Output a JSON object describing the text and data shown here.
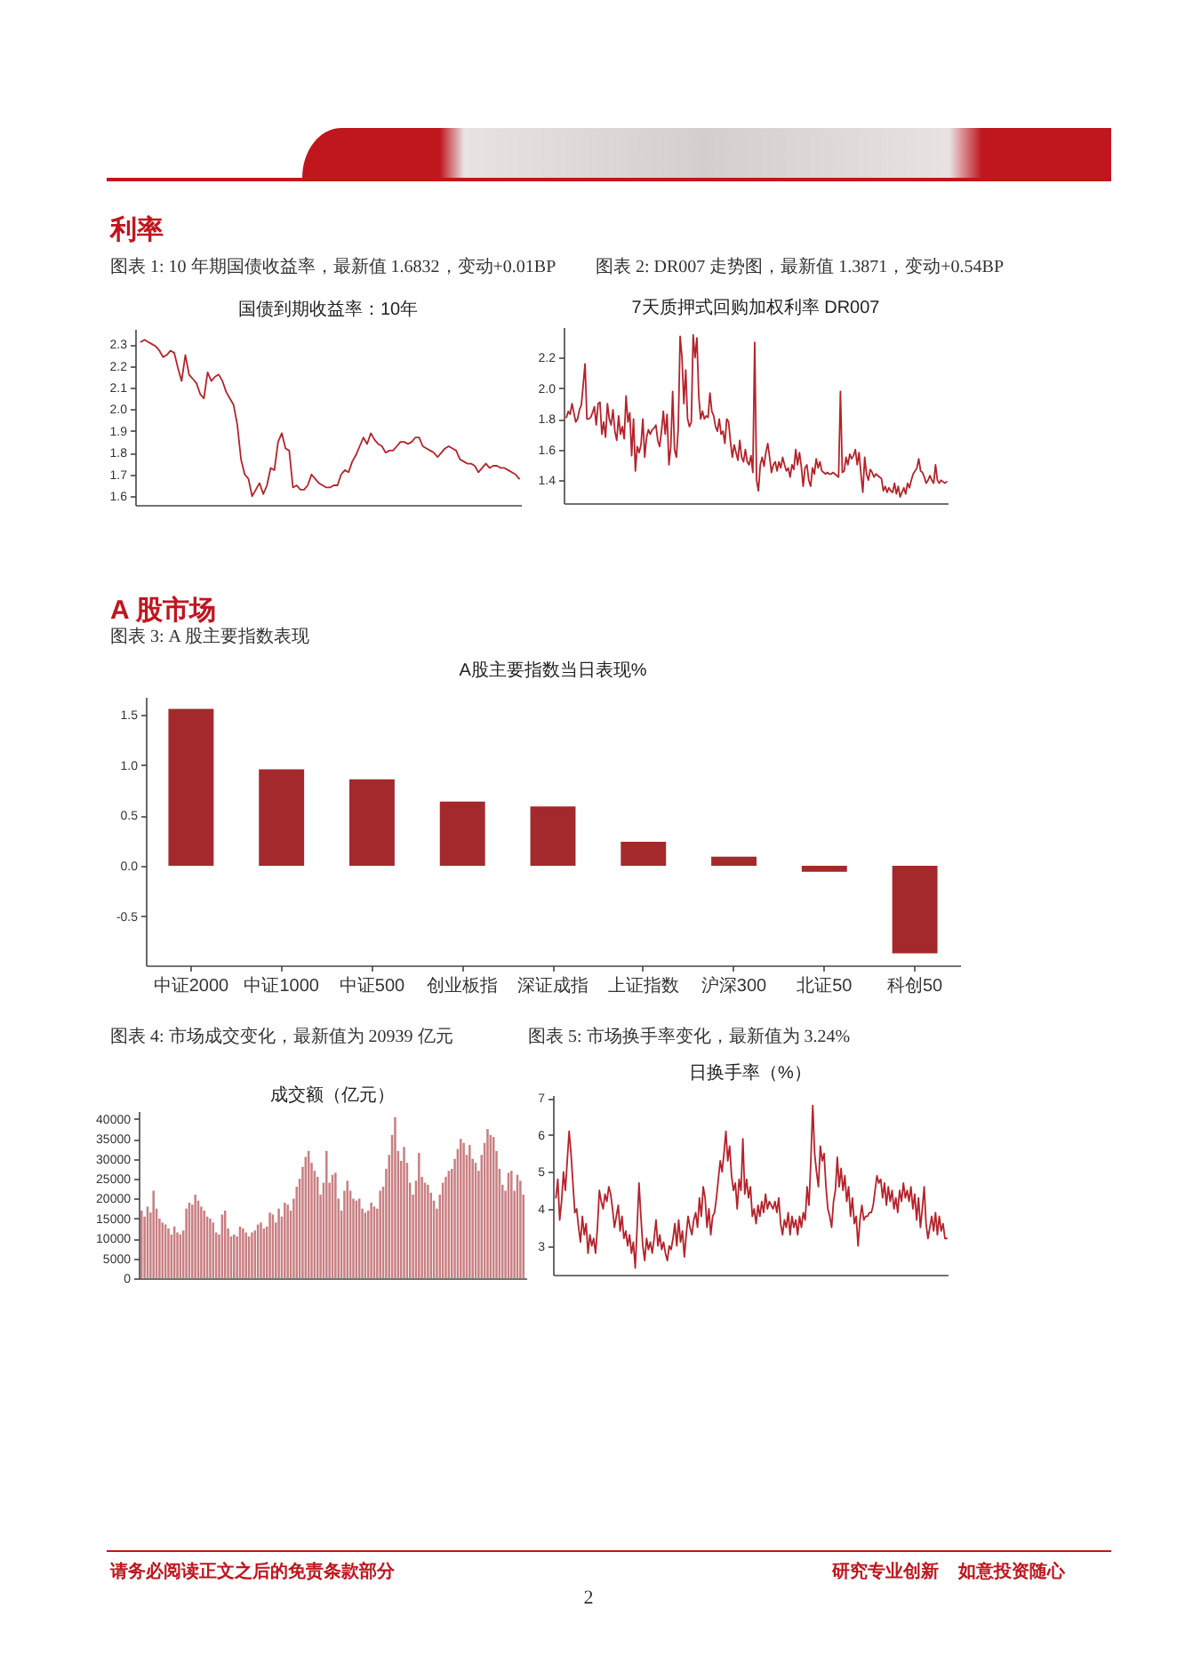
{
  "chart_data": [
    {
      "type": "line",
      "title": "国债到期收益率：10年",
      "subtitle": "图表 1: 10 年期国债收益率，最新值 1.6832，变动+0.01BP",
      "annotations": [
        "利率"
      ],
      "color": "#b5232a",
      "categories": [
        null,
        null,
        null,
        null,
        null,
        null,
        null,
        null,
        null,
        null,
        null,
        null,
        null,
        null,
        null,
        null,
        null,
        null,
        null,
        null,
        null,
        null,
        null,
        null,
        null,
        null,
        null,
        null,
        null,
        null,
        null,
        null,
        null,
        null,
        null,
        null,
        null,
        null,
        null,
        null,
        null,
        null,
        null,
        null,
        null,
        null,
        null,
        null,
        null,
        null,
        null,
        null,
        null,
        null,
        null,
        null,
        null,
        null,
        null,
        null,
        null,
        null,
        null,
        null,
        null,
        null,
        null,
        null,
        null,
        null,
        null,
        null,
        null,
        null,
        null,
        null,
        null,
        null,
        null,
        null,
        null,
        null,
        null,
        null,
        null,
        null,
        null,
        null,
        null,
        null,
        null,
        null,
        null,
        null,
        null,
        null,
        null,
        null,
        null,
        null,
        null,
        null,
        null
      ],
      "values": [
        2.31,
        2.32,
        2.31,
        2.3,
        2.29,
        2.27,
        2.24,
        2.25,
        2.27,
        2.26,
        2.19,
        2.13,
        2.25,
        2.16,
        2.14,
        2.12,
        2.07,
        2.05,
        2.17,
        2.13,
        2.15,
        2.16,
        2.13,
        2.08,
        2.05,
        2.02,
        1.93,
        1.77,
        1.7,
        1.68,
        1.6,
        1.63,
        1.66,
        1.61,
        1.65,
        1.73,
        1.72,
        1.85,
        1.89,
        1.82,
        1.81,
        1.64,
        1.65,
        1.63,
        1.63,
        1.65,
        1.7,
        1.68,
        1.66,
        1.65,
        1.64,
        1.64,
        1.65,
        1.65,
        1.7,
        1.72,
        1.71,
        1.76,
        1.79,
        1.83,
        1.87,
        1.84,
        1.89,
        1.86,
        1.84,
        1.83,
        1.8,
        1.81,
        1.81,
        1.83,
        1.85,
        1.85,
        1.84,
        1.85,
        1.87,
        1.87,
        1.83,
        1.82,
        1.81,
        1.8,
        1.78,
        1.8,
        1.82,
        1.83,
        1.82,
        1.81,
        1.77,
        1.76,
        1.75,
        1.75,
        1.74,
        1.71,
        1.73,
        1.75,
        1.73,
        1.74,
        1.74,
        1.73,
        1.73,
        1.72,
        1.71,
        1.7,
        1.68
      ],
      "ylim": [
        1.56,
        2.37
      ],
      "yticks": [
        2.3,
        2.2,
        2.1,
        {
          "value": 2,
          "label": "2.0"
        },
        1.9,
        1.8,
        1.7,
        1.6
      ]
    },
    {
      "type": "line",
      "title": "7天质押式回购加权利率 DR007",
      "subtitle": "图表 2: DR007 走势图，最新值 1.3871，变动+0.54BP",
      "color": "#b5232a",
      "categories": [
        null,
        null,
        null,
        null,
        null,
        null,
        null,
        null,
        null,
        null,
        null,
        null,
        null,
        null,
        null,
        null,
        null,
        null,
        null,
        null,
        null,
        null,
        null,
        null,
        null,
        null,
        null,
        null,
        null,
        null,
        null,
        null,
        null,
        null,
        null,
        null,
        null,
        null,
        null,
        null,
        null,
        null,
        null,
        null,
        null,
        null,
        null,
        null,
        null,
        null,
        null,
        null,
        null,
        null,
        null,
        null,
        null,
        null,
        null,
        null,
        null,
        null,
        null,
        null,
        null,
        null,
        null,
        null,
        null,
        null,
        null,
        null,
        null,
        null,
        null,
        null,
        null,
        null,
        null,
        null,
        null,
        null,
        null,
        null,
        null,
        null,
        null,
        null,
        null,
        null,
        null,
        null,
        null,
        null,
        null,
        null,
        null,
        null,
        null,
        null,
        null,
        null,
        null,
        null,
        null,
        null,
        null,
        null,
        null,
        null,
        null,
        null,
        null,
        null,
        null,
        null,
        null,
        null,
        null,
        null,
        null,
        null,
        null,
        null,
        null,
        null,
        null,
        null,
        null,
        null,
        null,
        null,
        null,
        null,
        null,
        null,
        null,
        null,
        null,
        null,
        null,
        null,
        null,
        null,
        null,
        null,
        null,
        null,
        null,
        null,
        null,
        null,
        null,
        null,
        null,
        null,
        null,
        null,
        null,
        null,
        null,
        null,
        null,
        null,
        null,
        null,
        null,
        null,
        null,
        null,
        null,
        null,
        null,
        null,
        null,
        null,
        null,
        null,
        null,
        null,
        null,
        null,
        null,
        null,
        null,
        null,
        null,
        null,
        null,
        null,
        null,
        null,
        null,
        null,
        null,
        null,
        null,
        null,
        null,
        null,
        null,
        null,
        null,
        null,
        null
      ],
      "values": [
        1.81,
        1.85,
        1.83,
        1.9,
        1.84,
        1.78,
        1.8,
        1.86,
        1.89,
        2.02,
        2.16,
        1.8,
        1.8,
        1.81,
        1.84,
        1.88,
        1.76,
        1.9,
        1.91,
        1.7,
        1.78,
        1.68,
        1.9,
        1.8,
        1.76,
        1.86,
        1.72,
        1.66,
        1.82,
        1.7,
        1.75,
        1.67,
        1.95,
        1.78,
        1.84,
        1.56,
        1.8,
        1.46,
        1.62,
        1.58,
        1.63,
        1.8,
        1.55,
        1.68,
        1.73,
        1.7,
        1.73,
        1.74,
        1.76,
        1.66,
        1.62,
        1.72,
        1.85,
        1.7,
        1.83,
        1.5,
        1.62,
        1.98,
        1.6,
        1.55,
        1.74,
        2.34,
        2.2,
        1.9,
        2.12,
        1.8,
        1.75,
        1.78,
        2.35,
        2.2,
        2.33,
        1.95,
        1.8,
        1.85,
        1.8,
        1.82,
        1.81,
        1.97,
        1.85,
        1.82,
        1.75,
        1.72,
        1.8,
        1.7,
        1.72,
        1.64,
        1.8,
        1.78,
        1.65,
        1.55,
        1.63,
        1.58,
        1.53,
        1.66,
        1.55,
        1.52,
        1.6,
        1.52,
        1.5,
        1.56,
        1.45,
        2.3,
        1.4,
        1.33,
        1.5,
        1.55,
        1.49,
        1.58,
        1.64,
        1.55,
        1.45,
        1.5,
        1.52,
        1.46,
        1.52,
        1.48,
        1.55,
        1.5,
        1.46,
        1.48,
        1.42,
        1.5,
        1.47,
        1.6,
        1.5,
        1.58,
        1.49,
        1.36,
        1.48,
        1.5,
        1.4,
        1.36,
        1.48,
        1.44,
        1.54,
        1.48,
        1.52,
        1.46,
        1.45,
        1.44,
        1.45,
        1.44,
        1.44,
        1.45,
        1.44,
        1.43,
        1.42,
        1.98,
        1.45,
        1.46,
        1.55,
        1.5,
        1.57,
        1.54,
        1.56,
        1.6,
        1.5,
        1.58,
        1.44,
        1.32,
        1.55,
        1.44,
        1.4,
        1.47,
        1.45,
        1.42,
        1.44,
        1.43,
        1.42,
        1.41,
        1.33,
        1.36,
        1.32,
        1.35,
        1.33,
        1.32,
        1.38,
        1.31,
        1.36,
        1.29,
        1.32,
        1.35,
        1.31,
        1.38,
        1.35,
        1.4,
        1.44,
        1.46,
        1.48,
        1.54,
        1.46,
        1.45,
        1.42,
        1.38,
        1.4,
        1.43,
        1.4,
        1.38,
        1.5,
        1.4,
        1.38,
        1.4,
        1.39,
        1.38,
        1.39
      ],
      "ylim": [
        1.25,
        2.4
      ],
      "yticks": [
        2.2,
        {
          "value": 2,
          "label": "2.0"
        },
        1.8,
        1.6,
        1.4
      ]
    },
    {
      "type": "bar",
      "title": "A股主要指数当日表现%",
      "subtitle": "图表 3: A 股主要指数表现",
      "annotations": [
        "A 股市场"
      ],
      "color": "#a3292d",
      "categories": [
        "中证2000",
        "中证1000",
        "中证500",
        "创业板指",
        "深证成指",
        "上证指数",
        "沪深300",
        "北证50",
        "科创50"
      ],
      "values": [
        1.56,
        0.96,
        0.86,
        0.64,
        0.59,
        0.24,
        0.09,
        -0.06,
        -0.87
      ],
      "ylim": [
        -0.99,
        1.68
      ],
      "yticks": [
        1.5,
        {
          "value": 1,
          "label": "1.0"
        },
        0.5,
        {
          "value": 0,
          "label": "0.0"
        },
        -0.5
      ]
    },
    {
      "type": "bar",
      "title": "成交额（亿元）",
      "subtitle": "图表 4: 市场成交变化，最新值为 20939 亿元",
      "color": "#c97f82",
      "categories": [
        null,
        null,
        null,
        null,
        null,
        null,
        null,
        null,
        null,
        null,
        null,
        null,
        null,
        null,
        null,
        null,
        null,
        null,
        null,
        null,
        null,
        null,
        null,
        null,
        null,
        null,
        null,
        null,
        null,
        null,
        null,
        null,
        null,
        null,
        null,
        null,
        null,
        null,
        null,
        null,
        null,
        null,
        null,
        null,
        null,
        null,
        null,
        null,
        null,
        null,
        null,
        null,
        null,
        null,
        null,
        null,
        null,
        null,
        null,
        null,
        null,
        null,
        null,
        null,
        null,
        null,
        null,
        null,
        null,
        null,
        null,
        null,
        null,
        null,
        null,
        null,
        null,
        null,
        null,
        null,
        null,
        null,
        null,
        null,
        null,
        null,
        null,
        null,
        null,
        null,
        null,
        null,
        null,
        null,
        null,
        null,
        null,
        null,
        null,
        null,
        null,
        null,
        null,
        null,
        null,
        null,
        null,
        null,
        null,
        null,
        null,
        null,
        null,
        null,
        null,
        null,
        null,
        null,
        null,
        null,
        null,
        null,
        null,
        null,
        null,
        null,
        null,
        null,
        null
      ],
      "values": [
        17000,
        15500,
        18000,
        16500,
        22000,
        17500,
        15000,
        14000,
        13500,
        12500,
        11000,
        13000,
        11500,
        11000,
        12000,
        17500,
        19000,
        18500,
        21000,
        19500,
        18000,
        17000,
        15500,
        15000,
        14000,
        11500,
        11000,
        16000,
        17000,
        12500,
        10500,
        11000,
        10500,
        13000,
        12500,
        11500,
        10500,
        11500,
        12000,
        13500,
        14000,
        12500,
        13000,
        16500,
        16000,
        14000,
        17500,
        15500,
        19000,
        18500,
        17000,
        20000,
        23000,
        25000,
        28000,
        30500,
        32000,
        29000,
        27000,
        25500,
        21000,
        24000,
        32000,
        24000,
        26000,
        26500,
        20000,
        17000,
        22000,
        24500,
        22000,
        20000,
        19500,
        20000,
        17500,
        16500,
        17000,
        19000,
        18000,
        17500,
        22000,
        23000,
        27500,
        31000,
        36000,
        40500,
        32000,
        29500,
        33000,
        29000,
        24000,
        21000,
        24500,
        31500,
        25500,
        24000,
        23500,
        21500,
        19500,
        17500,
        21000,
        24000,
        25500,
        27000,
        27500,
        30000,
        32500,
        35000,
        34000,
        31000,
        33500,
        30000,
        29000,
        27000,
        31000,
        34000,
        37500,
        36000,
        35500,
        32000,
        27500,
        23500,
        22000,
        26500,
        27000,
        22000,
        26000,
        24500,
        21000
      ],
      "ylim": [
        0,
        42000
      ],
      "yticks": [
        0,
        5000,
        10000,
        15000,
        20000,
        25000,
        30000,
        35000,
        40000
      ]
    },
    {
      "type": "line",
      "title": "日换手率（%）",
      "subtitle": "图表 5: 市场换手率变化，最新值为 3.24%",
      "annotations": [
        "请务必阅读正文之后的免责条款部分",
        "研究专业创新 如意投资随心",
        "2"
      ],
      "color": "#b5232a",
      "categories": [
        null,
        null,
        null,
        null,
        null,
        null,
        null,
        null,
        null,
        null,
        null,
        null,
        null,
        null,
        null,
        null,
        null,
        null,
        null,
        null,
        null,
        null,
        null,
        null,
        null,
        null,
        null,
        null,
        null,
        null,
        null,
        null,
        null,
        null,
        null,
        null,
        null,
        null,
        null,
        null,
        null,
        null,
        null,
        null,
        null,
        null,
        null,
        null,
        null,
        null,
        null,
        null,
        null,
        null,
        null,
        null,
        null,
        null,
        null,
        null,
        null,
        null,
        null,
        null,
        null,
        null,
        null,
        null,
        null,
        null,
        null,
        null,
        null,
        null,
        null,
        null,
        null,
        null,
        null,
        null,
        null,
        null,
        null,
        null,
        null,
        null,
        null,
        null,
        null,
        null,
        null,
        null,
        null,
        null,
        null,
        null,
        null,
        null,
        null,
        null,
        null,
        null,
        null,
        null,
        null,
        null,
        null,
        null,
        null,
        null,
        null,
        null,
        null,
        null,
        null,
        null,
        null,
        null,
        null,
        null,
        null,
        null,
        null,
        null,
        null,
        null,
        null,
        null,
        null,
        null,
        null,
        null,
        null,
        null,
        null,
        null,
        null,
        null,
        null,
        null,
        null,
        null,
        null,
        null,
        null,
        null,
        null,
        null,
        null,
        null,
        null,
        null,
        null,
        null,
        null,
        null,
        null,
        null,
        null,
        null,
        null,
        null,
        null,
        null,
        null,
        null,
        null,
        null,
        null,
        null,
        null,
        null,
        null,
        null,
        null,
        null,
        null,
        null,
        null,
        null,
        null,
        null,
        null,
        null,
        null,
        null,
        null,
        null,
        null,
        null,
        null,
        null,
        null,
        null,
        null,
        null,
        null,
        null,
        null,
        null,
        null,
        null,
        null,
        null,
        null,
        null,
        null,
        null
      ],
      "values": [
        4.3,
        4.8,
        3.7,
        4.2,
        5.0,
        4.5,
        5.3,
        6.1,
        5.5,
        4.7,
        3.9,
        4.0,
        3.5,
        3.1,
        3.8,
        3.3,
        3.6,
        2.8,
        3.3,
        3.0,
        3.2,
        2.8,
        3.5,
        4.5,
        4.2,
        4.0,
        4.4,
        4.2,
        4.6,
        4.4,
        4.0,
        3.5,
        3.8,
        4.1,
        3.4,
        3.8,
        3.2,
        3.4,
        3.0,
        3.3,
        2.8,
        3.1,
        2.4,
        3.5,
        4.7,
        3.8,
        3.0,
        2.6,
        3.2,
        2.9,
        3.1,
        2.8,
        3.2,
        3.7,
        3.0,
        3.3,
        2.9,
        3.1,
        2.8,
        2.6,
        3.0,
        2.9,
        3.2,
        3.6,
        3.0,
        3.7,
        3.1,
        3.4,
        2.7,
        3.3,
        3.8,
        3.5,
        3.3,
        3.7,
        3.9,
        3.5,
        4.3,
        3.8,
        4.6,
        4.3,
        3.5,
        4.0,
        3.3,
        3.8,
        3.9,
        4.3,
        4.8,
        5.3,
        5.0,
        5.5,
        6.1,
        5.3,
        5.7,
        4.9,
        4.5,
        4.7,
        4.0,
        4.8,
        4.5,
        5.9,
        4.4,
        4.8,
        4.3,
        4.6,
        3.8,
        4.0,
        3.6,
        4.1,
        3.8,
        4.2,
        3.9,
        4.4,
        4.0,
        4.2,
        4.1,
        4.0,
        4.2,
        3.9,
        4.3,
        3.6,
        3.3,
        3.7,
        3.5,
        3.9,
        3.3,
        3.8,
        3.5,
        3.7,
        3.3,
        3.8,
        3.5,
        3.9,
        3.7,
        4.6,
        4.1,
        5.3,
        6.8,
        5.5,
        5.0,
        4.6,
        5.7,
        5.3,
        5.5,
        4.6,
        4.0,
        3.8,
        3.5,
        4.2,
        4.5,
        5.4,
        4.6,
        5.1,
        4.5,
        4.9,
        4.2,
        4.6,
        3.8,
        4.3,
        3.6,
        3.8,
        3.0,
        3.7,
        4.1,
        3.7,
        3.8,
        3.8,
        3.9,
        3.9,
        4.1,
        4.5,
        4.9,
        4.7,
        4.8,
        4.3,
        4.7,
        4.1,
        4.6,
        4.2,
        4.5,
        4.0,
        4.3,
        3.9,
        4.5,
        4.2,
        4.7,
        4.3,
        4.5,
        4.2,
        4.6,
        4.0,
        4.4,
        3.7,
        4.3,
        3.5,
        4.0,
        4.6,
        3.6,
        3.2,
        3.5,
        3.8,
        3.4,
        3.9,
        3.3,
        3.8,
        3.4,
        3.6,
        3.2,
        3.2
      ],
      "ylim": [
        2.22,
        7.08
      ],
      "yticks": [
        3,
        4,
        5,
        6,
        7
      ]
    }
  ]
}
